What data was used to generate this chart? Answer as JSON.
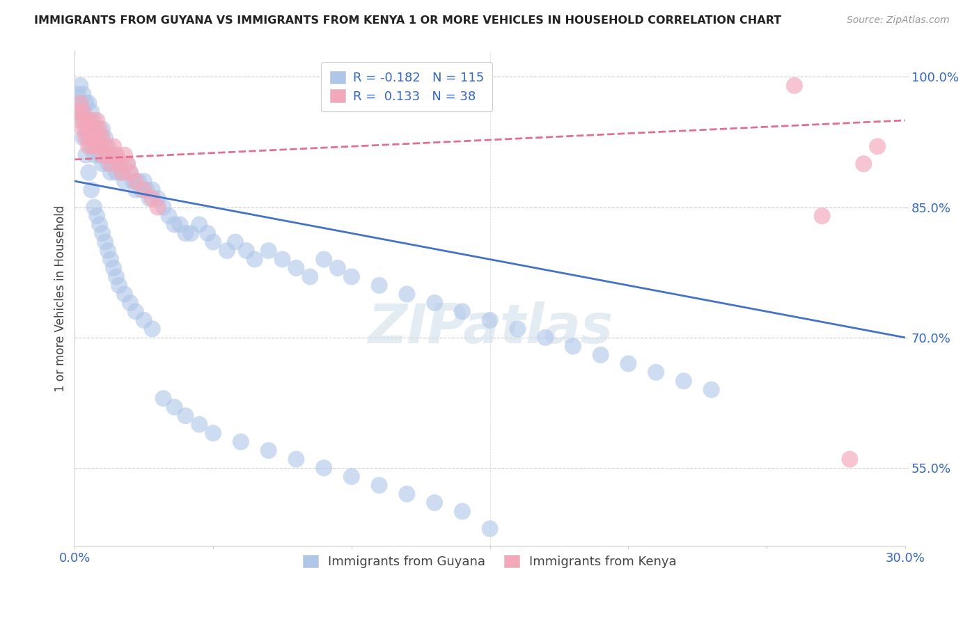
{
  "title": "IMMIGRANTS FROM GUYANA VS IMMIGRANTS FROM KENYA 1 OR MORE VEHICLES IN HOUSEHOLD CORRELATION CHART",
  "source": "Source: ZipAtlas.com",
  "xlabel_guyana": "Immigrants from Guyana",
  "xlabel_kenya": "Immigrants from Kenya",
  "ylabel": "1 or more Vehicles in Household",
  "watermark": "ZIPatlas",
  "xlim": [
    0.0,
    0.3
  ],
  "ylim": [
    0.46,
    1.03
  ],
  "ytick_labels": [
    "55.0%",
    "70.0%",
    "85.0%",
    "100.0%"
  ],
  "yticks": [
    0.55,
    0.7,
    0.85,
    1.0
  ],
  "R_guyana": -0.182,
  "N_guyana": 115,
  "R_kenya": 0.133,
  "N_kenya": 38,
  "color_guyana": "#aec6e8",
  "color_guyana_line": "#4472c4",
  "color_kenya": "#f4a7b9",
  "color_kenya_line": "#e07090",
  "background_color": "#ffffff",
  "guyana_x": [
    0.001,
    0.002,
    0.002,
    0.003,
    0.003,
    0.003,
    0.004,
    0.004,
    0.005,
    0.005,
    0.005,
    0.006,
    0.006,
    0.006,
    0.007,
    0.007,
    0.007,
    0.008,
    0.008,
    0.009,
    0.009,
    0.01,
    0.01,
    0.01,
    0.011,
    0.011,
    0.012,
    0.012,
    0.013,
    0.013,
    0.014,
    0.015,
    0.015,
    0.016,
    0.017,
    0.018,
    0.019,
    0.02,
    0.021,
    0.022,
    0.023,
    0.024,
    0.025,
    0.026,
    0.027,
    0.028,
    0.03,
    0.032,
    0.034,
    0.036,
    0.038,
    0.04,
    0.042,
    0.045,
    0.048,
    0.05,
    0.055,
    0.058,
    0.062,
    0.065,
    0.07,
    0.075,
    0.08,
    0.085,
    0.09,
    0.095,
    0.1,
    0.11,
    0.12,
    0.13,
    0.14,
    0.15,
    0.16,
    0.17,
    0.18,
    0.19,
    0.2,
    0.21,
    0.22,
    0.23,
    0.002,
    0.003,
    0.004,
    0.005,
    0.006,
    0.007,
    0.008,
    0.009,
    0.01,
    0.011,
    0.012,
    0.013,
    0.014,
    0.015,
    0.016,
    0.018,
    0.02,
    0.022,
    0.025,
    0.028,
    0.032,
    0.036,
    0.04,
    0.045,
    0.05,
    0.06,
    0.07,
    0.08,
    0.09,
    0.1,
    0.11,
    0.12,
    0.13,
    0.14,
    0.15
  ],
  "guyana_y": [
    0.98,
    0.97,
    0.99,
    0.95,
    0.96,
    0.98,
    0.94,
    0.97,
    0.93,
    0.95,
    0.97,
    0.92,
    0.94,
    0.96,
    0.91,
    0.93,
    0.95,
    0.92,
    0.94,
    0.91,
    0.93,
    0.9,
    0.92,
    0.94,
    0.91,
    0.93,
    0.9,
    0.92,
    0.89,
    0.91,
    0.9,
    0.89,
    0.91,
    0.9,
    0.89,
    0.88,
    0.9,
    0.89,
    0.88,
    0.87,
    0.88,
    0.87,
    0.88,
    0.87,
    0.86,
    0.87,
    0.86,
    0.85,
    0.84,
    0.83,
    0.83,
    0.82,
    0.82,
    0.83,
    0.82,
    0.81,
    0.8,
    0.81,
    0.8,
    0.79,
    0.8,
    0.79,
    0.78,
    0.77,
    0.79,
    0.78,
    0.77,
    0.76,
    0.75,
    0.74,
    0.73,
    0.72,
    0.71,
    0.7,
    0.69,
    0.68,
    0.67,
    0.66,
    0.65,
    0.64,
    0.96,
    0.93,
    0.91,
    0.89,
    0.87,
    0.85,
    0.84,
    0.83,
    0.82,
    0.81,
    0.8,
    0.79,
    0.78,
    0.77,
    0.76,
    0.75,
    0.74,
    0.73,
    0.72,
    0.71,
    0.63,
    0.62,
    0.61,
    0.6,
    0.59,
    0.58,
    0.57,
    0.56,
    0.55,
    0.54,
    0.53,
    0.52,
    0.51,
    0.5,
    0.48
  ],
  "kenya_x": [
    0.001,
    0.002,
    0.002,
    0.003,
    0.003,
    0.004,
    0.004,
    0.005,
    0.005,
    0.006,
    0.006,
    0.007,
    0.007,
    0.008,
    0.008,
    0.009,
    0.009,
    0.01,
    0.01,
    0.011,
    0.012,
    0.013,
    0.014,
    0.015,
    0.016,
    0.017,
    0.018,
    0.019,
    0.02,
    0.022,
    0.025,
    0.028,
    0.03,
    0.26,
    0.27,
    0.28,
    0.285,
    0.29
  ],
  "kenya_y": [
    0.96,
    0.95,
    0.97,
    0.94,
    0.96,
    0.93,
    0.95,
    0.92,
    0.94,
    0.93,
    0.95,
    0.92,
    0.94,
    0.93,
    0.95,
    0.92,
    0.94,
    0.91,
    0.93,
    0.92,
    0.91,
    0.9,
    0.92,
    0.91,
    0.9,
    0.89,
    0.91,
    0.9,
    0.89,
    0.88,
    0.87,
    0.86,
    0.85,
    0.99,
    0.84,
    0.56,
    0.9,
    0.92
  ],
  "g_line_x": [
    0.0,
    0.3
  ],
  "g_line_y": [
    0.88,
    0.7
  ],
  "k_line_x": [
    0.0,
    0.3
  ],
  "k_line_y": [
    0.905,
    0.95
  ]
}
